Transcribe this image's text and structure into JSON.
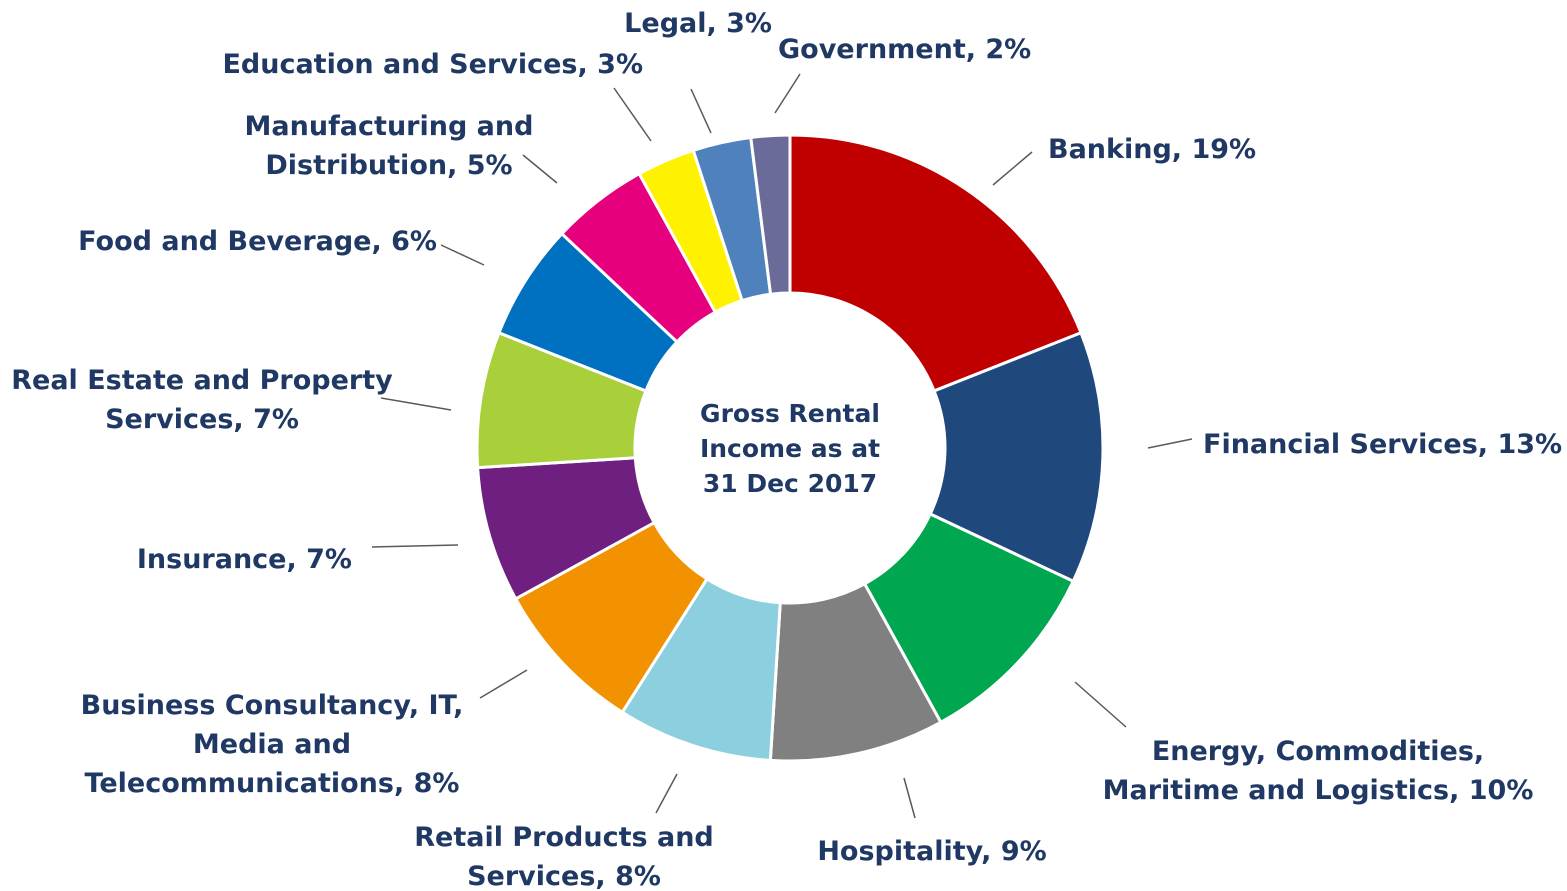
{
  "chart_data": {
    "type": "pie",
    "variant": "donut",
    "center_label": [
      "Gross Rental",
      "Income as at",
      "31 Dec 2017"
    ],
    "categories": [
      "Banking",
      "Financial Services",
      "Energy, Commodities, Maritime and Logistics",
      "Hospitality",
      "Retail Products and Services",
      "Business Consultancy, IT, Media and Telecommunications",
      "Insurance",
      "Real Estate and Property Services",
      "Food and Beverage",
      "Manufacturing and Distribution",
      "Education and Services",
      "Legal",
      "Government"
    ],
    "values": [
      19,
      13,
      10,
      9,
      8,
      8,
      7,
      7,
      6,
      5,
      3,
      3,
      2
    ],
    "unit": "%",
    "colors": [
      "#C00000",
      "#1F497D",
      "#00A650",
      "#808080",
      "#8CCFDF",
      "#F39200",
      "#6F1F7F",
      "#A9CF3A",
      "#0070C0",
      "#E6007E",
      "#FFF200",
      "#4F81BD",
      "#6B6B9A"
    ],
    "labels": [
      [
        "Banking, 19%"
      ],
      [
        "Financial Services, 13%"
      ],
      [
        "Energy, Commodities,",
        "Maritime and Logistics, 10%"
      ],
      [
        "Hospitality, 9%"
      ],
      [
        "Retail Products and",
        "Services, 8%"
      ],
      [
        "Business Consultancy, IT,",
        "Media and",
        "Telecommunications, 8%"
      ],
      [
        "Insurance, 7%"
      ],
      [
        "Real Estate and Property",
        "Services, 7%"
      ],
      [
        "Food and Beverage, 6%"
      ],
      [
        "Manufacturing and",
        "Distribution, 5%"
      ],
      [
        "Education and Services, 3%"
      ],
      [
        "Legal, 3%"
      ],
      [
        "Government, 2%"
      ]
    ],
    "label_color": "#1F3864",
    "legend": "none"
  }
}
